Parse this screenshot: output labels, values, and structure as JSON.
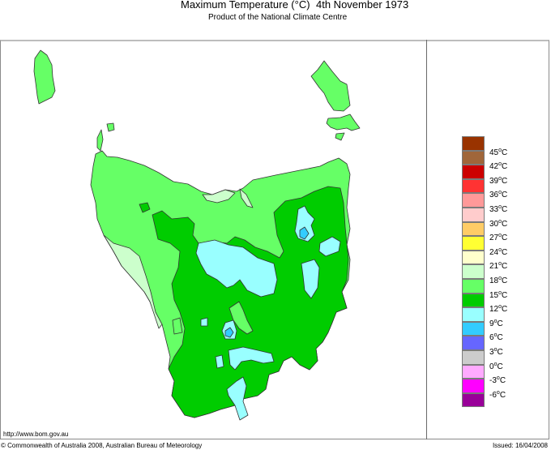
{
  "header": {
    "title": "Maximum Temperature (°C)",
    "date": "4th November 1973",
    "subtitle": "Product of the National Climate Centre"
  },
  "footer": {
    "url": "http://www.bom.gov.au",
    "copyright": "© Commonwealth of Australia 2008, Australian Bureau of Meteorology",
    "issued": "Issued: 16/04/2008"
  },
  "map": {
    "region": "Tasmania",
    "variable": "Maximum Temperature",
    "dominant_bands": [
      "12°C–15°C",
      "15°C–18°C",
      "9°C–12°C",
      "18°C–21°C",
      "6°C–9°C"
    ]
  },
  "legend": {
    "items": [
      {
        "label": "45",
        "color": "#993300"
      },
      {
        "label": "42",
        "color": "#a0663a"
      },
      {
        "label": "39",
        "color": "#cc0000"
      },
      {
        "label": "36",
        "color": "#ff3333"
      },
      {
        "label": "33",
        "color": "#ff9999"
      },
      {
        "label": "30",
        "color": "#ffcccc"
      },
      {
        "label": "27",
        "color": "#ffcc66"
      },
      {
        "label": "24",
        "color": "#ffff33"
      },
      {
        "label": "21",
        "color": "#ffffcc"
      },
      {
        "label": "18",
        "color": "#ccffcc"
      },
      {
        "label": "15",
        "color": "#66ff66"
      },
      {
        "label": "12",
        "color": "#00cc00"
      },
      {
        "label": "9",
        "color": "#99ffff"
      },
      {
        "label": "6",
        "color": "#33ccff"
      },
      {
        "label": "3",
        "color": "#6666ff"
      },
      {
        "label": "0",
        "color": "#cccccc"
      },
      {
        "label": "-3",
        "color": "#ffaaff"
      },
      {
        "label": "-6",
        "color": "#ff00ff"
      },
      {
        "label": "",
        "color": "#990099"
      }
    ],
    "unit": "°C"
  },
  "colors": {
    "c18": "#ccffcc",
    "c15": "#66ff66",
    "c12": "#00cc00",
    "c9": "#99ffff",
    "c6": "#33ccff",
    "outline": "#333333"
  }
}
